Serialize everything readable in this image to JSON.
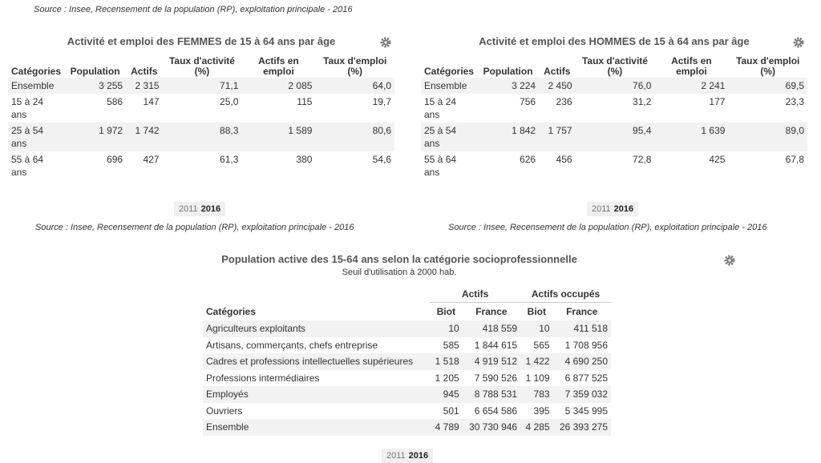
{
  "top_source": "Source : Insee, Recensement de la population (RP), exploitation principale - 2016",
  "women": {
    "title": "Activité et emploi des FEMMES de 15 à 64 ans par âge",
    "headers": [
      "Catégories",
      "Population",
      "Actifs",
      "Taux d'activité (%)",
      "Actifs en emploi",
      "Taux d'emploi (%)"
    ],
    "rows": [
      [
        "Ensemble",
        "3 255",
        "2 315",
        "71,1",
        "2 085",
        "64,0"
      ],
      [
        "15 à 24 ans",
        "586",
        "147",
        "25,0",
        "115",
        "19,7"
      ],
      [
        "25 à 54 ans",
        "1 972",
        "1 742",
        "88,3",
        "1 589",
        "80,6"
      ],
      [
        "55 à 64 ans",
        "696",
        "427",
        "61,3",
        "380",
        "54,6"
      ]
    ],
    "years": [
      "2011",
      "2016"
    ],
    "source": "Source : Insee, Recensement de la population (RP), exploitation principale - 2016"
  },
  "men": {
    "title": "Activité et emploi des HOMMES de 15 à 64 ans par âge",
    "headers": [
      "Catégories",
      "Population",
      "Actifs",
      "Taux d'activité (%)",
      "Actifs en emploi",
      "Taux d'emploi (%)"
    ],
    "rows": [
      [
        "Ensemble",
        "3 224",
        "2 450",
        "76,0",
        "2 241",
        "69,5"
      ],
      [
        "15 à 24 ans",
        "756",
        "236",
        "31,2",
        "177",
        "23,3"
      ],
      [
        "25 à 54 ans",
        "1 842",
        "1 757",
        "95,4",
        "1 639",
        "89,0"
      ],
      [
        "55 à 64 ans",
        "626",
        "456",
        "72,8",
        "425",
        "67,8"
      ]
    ],
    "years": [
      "2011",
      "2016"
    ],
    "source": "Source : Insee, Recensement de la population (RP), exploitation principale - 2016"
  },
  "csp": {
    "title": "Population active des 15-64 ans selon la catégorie socioprofessionnelle",
    "subtitle": "Seuil d'utilisation à 2000 hab.",
    "group_headers": [
      "Actifs",
      "Actifs occupés"
    ],
    "headers": [
      "Catégories",
      "Biot",
      "France",
      "Biot",
      "France"
    ],
    "rows": [
      [
        "Agriculteurs exploitants",
        "10",
        "418 559",
        "10",
        "411 518"
      ],
      [
        "Artisans, commerçants, chefs entreprise",
        "585",
        "1 844 615",
        "565",
        "1 708 956"
      ],
      [
        "Cadres et professions intellectuelles supérieures",
        "1 518",
        "4 919 512",
        "1 422",
        "4 690 250"
      ],
      [
        "Professions intermédiaires",
        "1 205",
        "7 590 526",
        "1 109",
        "6 877 525"
      ],
      [
        "Employés",
        "945",
        "8 788 531",
        "783",
        "7 359 032"
      ],
      [
        "Ouvriers",
        "501",
        "6 654 586",
        "395",
        "5 345 995"
      ],
      [
        "Ensemble",
        "4 789",
        "30 730 946",
        "4 285",
        "26 393 275"
      ]
    ],
    "years": [
      "2011",
      "2016"
    ]
  }
}
